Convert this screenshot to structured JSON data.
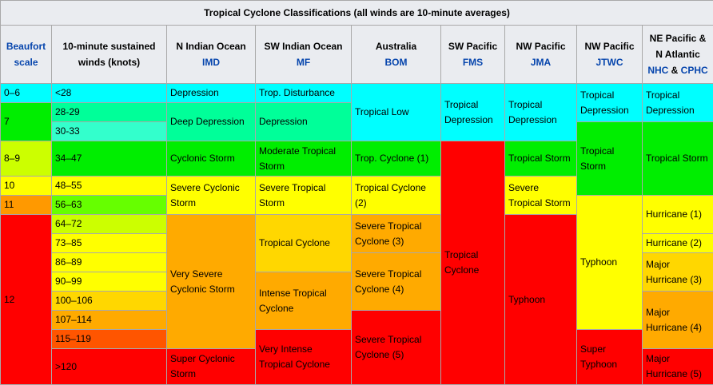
{
  "title": "Tropical Cyclone Classifications (all winds are 10-minute averages)",
  "headers": {
    "beaufort_line1": "Beaufort",
    "beaufort_line2": "scale",
    "winds_line1": "10-minute sustained",
    "winds_line2": "winds (knots)",
    "nio_region": "N Indian Ocean",
    "nio_agency": "IMD",
    "swio_region": "SW Indian Ocean",
    "swio_agency": "MF",
    "aus_region": "Australia",
    "aus_agency": "BOM",
    "swp_region": "SW Pacific",
    "swp_agency": "FMS",
    "nwp_jma_region": "NW Pacific",
    "nwp_jma_agency": "JMA",
    "nwp_jtwc_region": "NW Pacific",
    "nwp_jtwc_agency": "JTWC",
    "nep_region_line1": "NE Pacific &",
    "nep_region_line2": "N Atlantic",
    "nep_agency1": "NHC",
    "nep_amp": " & ",
    "nep_agency2": "CPHC"
  },
  "beaufort": [
    "0–6",
    "7",
    "8–9",
    "10",
    "11",
    "12"
  ],
  "winds": [
    "<28",
    "28-29",
    "30-33",
    "34–47",
    "48–55",
    "56–63",
    "64–72",
    "73–85",
    "86–89",
    "90–99",
    "100–106",
    "107–114",
    "115–119",
    ">120"
  ],
  "imd": [
    "Depression",
    "Deep Depression",
    "Cyclonic Storm",
    "Severe Cyclonic Storm",
    "Very Severe Cyclonic Storm",
    "Super Cyclonic Storm"
  ],
  "mf": [
    "Trop. Disturbance",
    "Depression",
    "Moderate Tropical Storm",
    "Severe Tropical Storm",
    "Tropical Cyclone",
    "Intense Tropical Cyclone",
    "Very Intense Tropical Cyclone"
  ],
  "bom": [
    "Tropical Low",
    "Trop. Cyclone (1)",
    "Tropical Cyclone (2)",
    "Severe Tropical Cyclone (3)",
    "Severe Tropical Cyclone (4)",
    "Severe Tropical Cyclone (5)"
  ],
  "fms": [
    "Tropical Depression",
    "Tropical Cyclone"
  ],
  "jma": [
    "Tropical Depression",
    "Tropical Storm",
    "Severe Tropical Storm",
    "Typhoon"
  ],
  "jtwc": [
    "Tropical Depression",
    "Tropical Storm",
    "Typhoon",
    "Super Typhoon"
  ],
  "nhc": [
    "Tropical Depression",
    "Tropical Storm",
    "Hurricane (1)",
    "Hurricane (2)",
    "Major Hurricane (3)",
    "Major Hurricane (4)",
    "Major Hurricane (5)"
  ],
  "colors": {
    "cyan": "#00ffff",
    "green": "#00ee00",
    "yellow": "#ffff00",
    "orange": "#ffaa00",
    "red": "#ff0000"
  }
}
